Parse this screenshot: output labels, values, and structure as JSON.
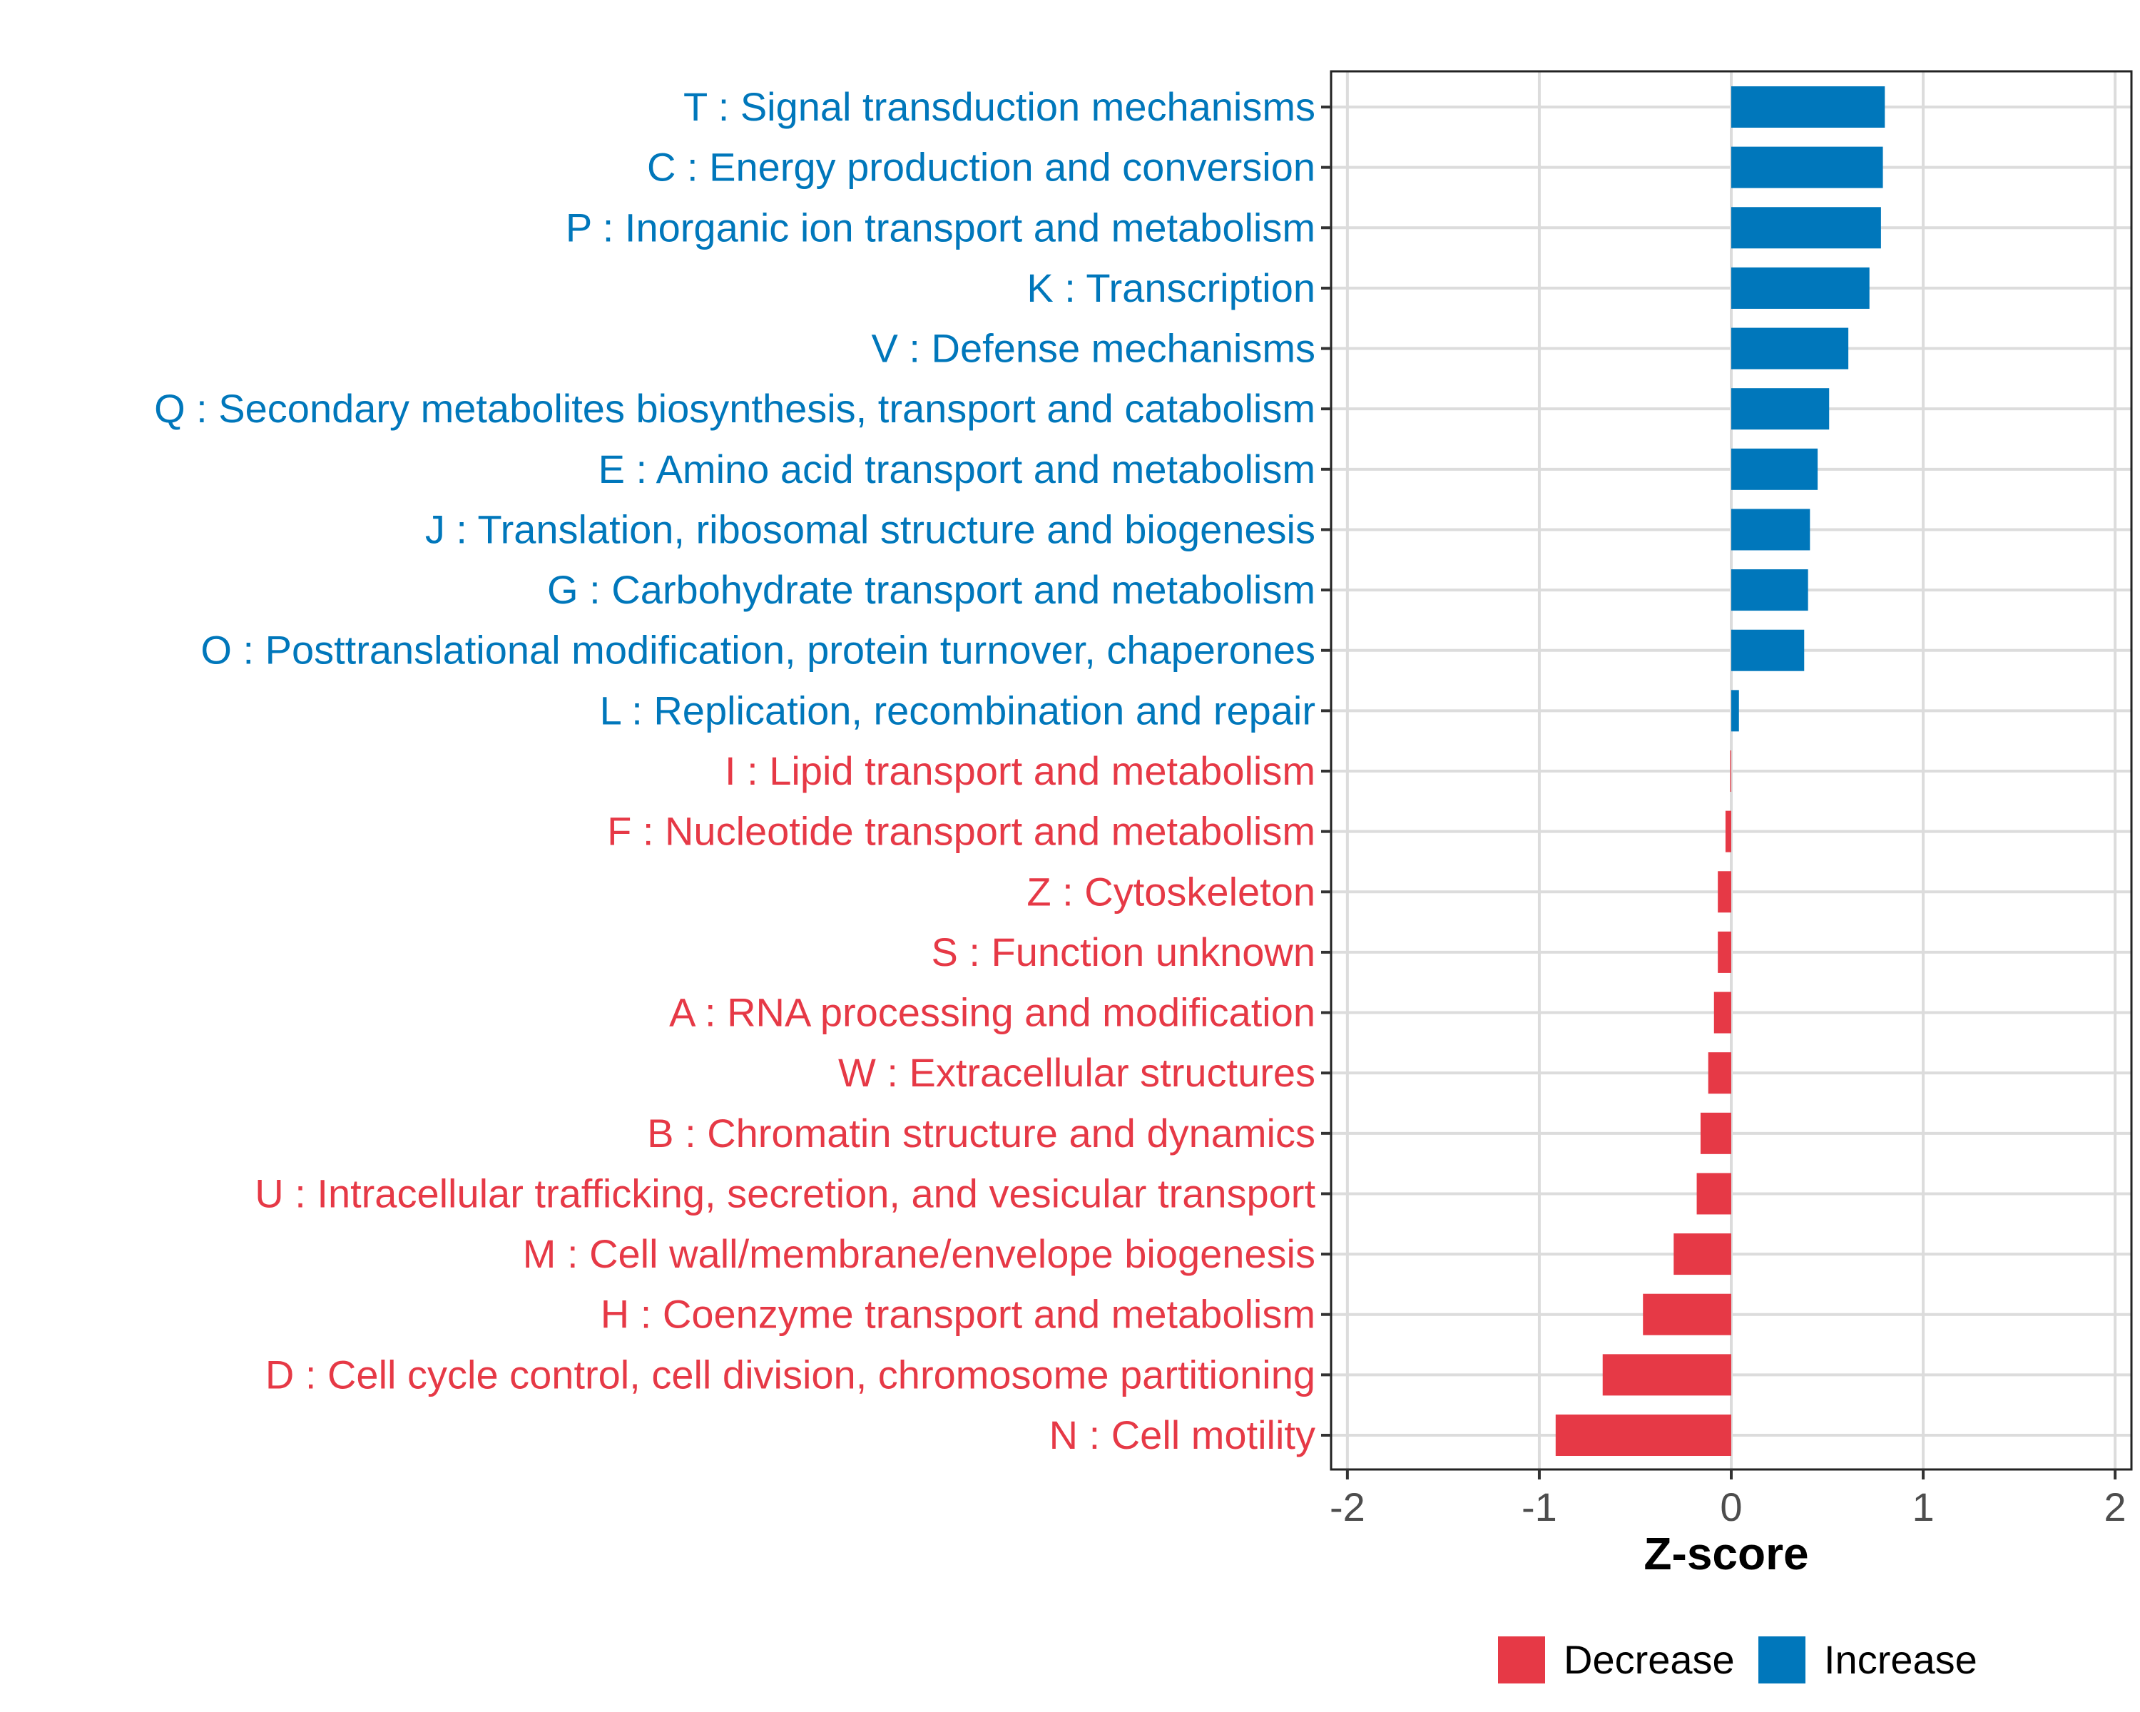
{
  "chart_data": {
    "type": "bar",
    "orientation": "horizontal",
    "title": "",
    "xlabel": "Z-score",
    "ylabel": "",
    "xlim": [
      -2.085,
      2.085
    ],
    "xticks": [
      -2,
      -1,
      0,
      1,
      2
    ],
    "xtick_labels": [
      "-2",
      "-1",
      "0",
      "1",
      "2"
    ],
    "grid": true,
    "legend_position": "bottom",
    "colors": {
      "Increase": "#0077bb",
      "Decrease": "#e63946"
    },
    "legend": [
      {
        "label": "Decrease",
        "color": "#e63946"
      },
      {
        "label": "Increase",
        "color": "#0077bb"
      }
    ],
    "categories": [
      "T : Signal transduction mechanisms",
      "C : Energy production and conversion",
      "P : Inorganic ion transport and metabolism",
      "K : Transcription",
      "V : Defense mechanisms",
      "Q : Secondary metabolites biosynthesis, transport and catabolism",
      "E : Amino acid transport and metabolism",
      "J : Translation, ribosomal structure and biogenesis",
      "G : Carbohydrate transport and metabolism",
      "O : Posttranslational modification, protein turnover, chaperones",
      "L : Replication, recombination and repair",
      "I : Lipid transport and metabolism",
      "F : Nucleotide transport and metabolism",
      "Z : Cytoskeleton",
      "S : Function unknown",
      "A : RNA processing and modification",
      "W : Extracellular structures",
      "B : Chromatin structure and dynamics",
      "U : Intracellular trafficking, secretion, and vesicular transport",
      "M : Cell wall/membrane/envelope biogenesis",
      "H : Coenzyme transport and metabolism",
      "D : Cell cycle control, cell division, chromosome partitioning",
      "N : Cell motility"
    ],
    "values": [
      0.8,
      0.79,
      0.78,
      0.72,
      0.61,
      0.51,
      0.45,
      0.41,
      0.4,
      0.38,
      0.04,
      -0.005,
      -0.03,
      -0.07,
      -0.07,
      -0.09,
      -0.12,
      -0.16,
      -0.18,
      -0.3,
      -0.46,
      -0.67,
      -0.915
    ],
    "direction": [
      "Increase",
      "Increase",
      "Increase",
      "Increase",
      "Increase",
      "Increase",
      "Increase",
      "Increase",
      "Increase",
      "Increase",
      "Increase",
      "Decrease",
      "Decrease",
      "Decrease",
      "Decrease",
      "Decrease",
      "Decrease",
      "Decrease",
      "Decrease",
      "Decrease",
      "Decrease",
      "Decrease",
      "Decrease"
    ]
  }
}
